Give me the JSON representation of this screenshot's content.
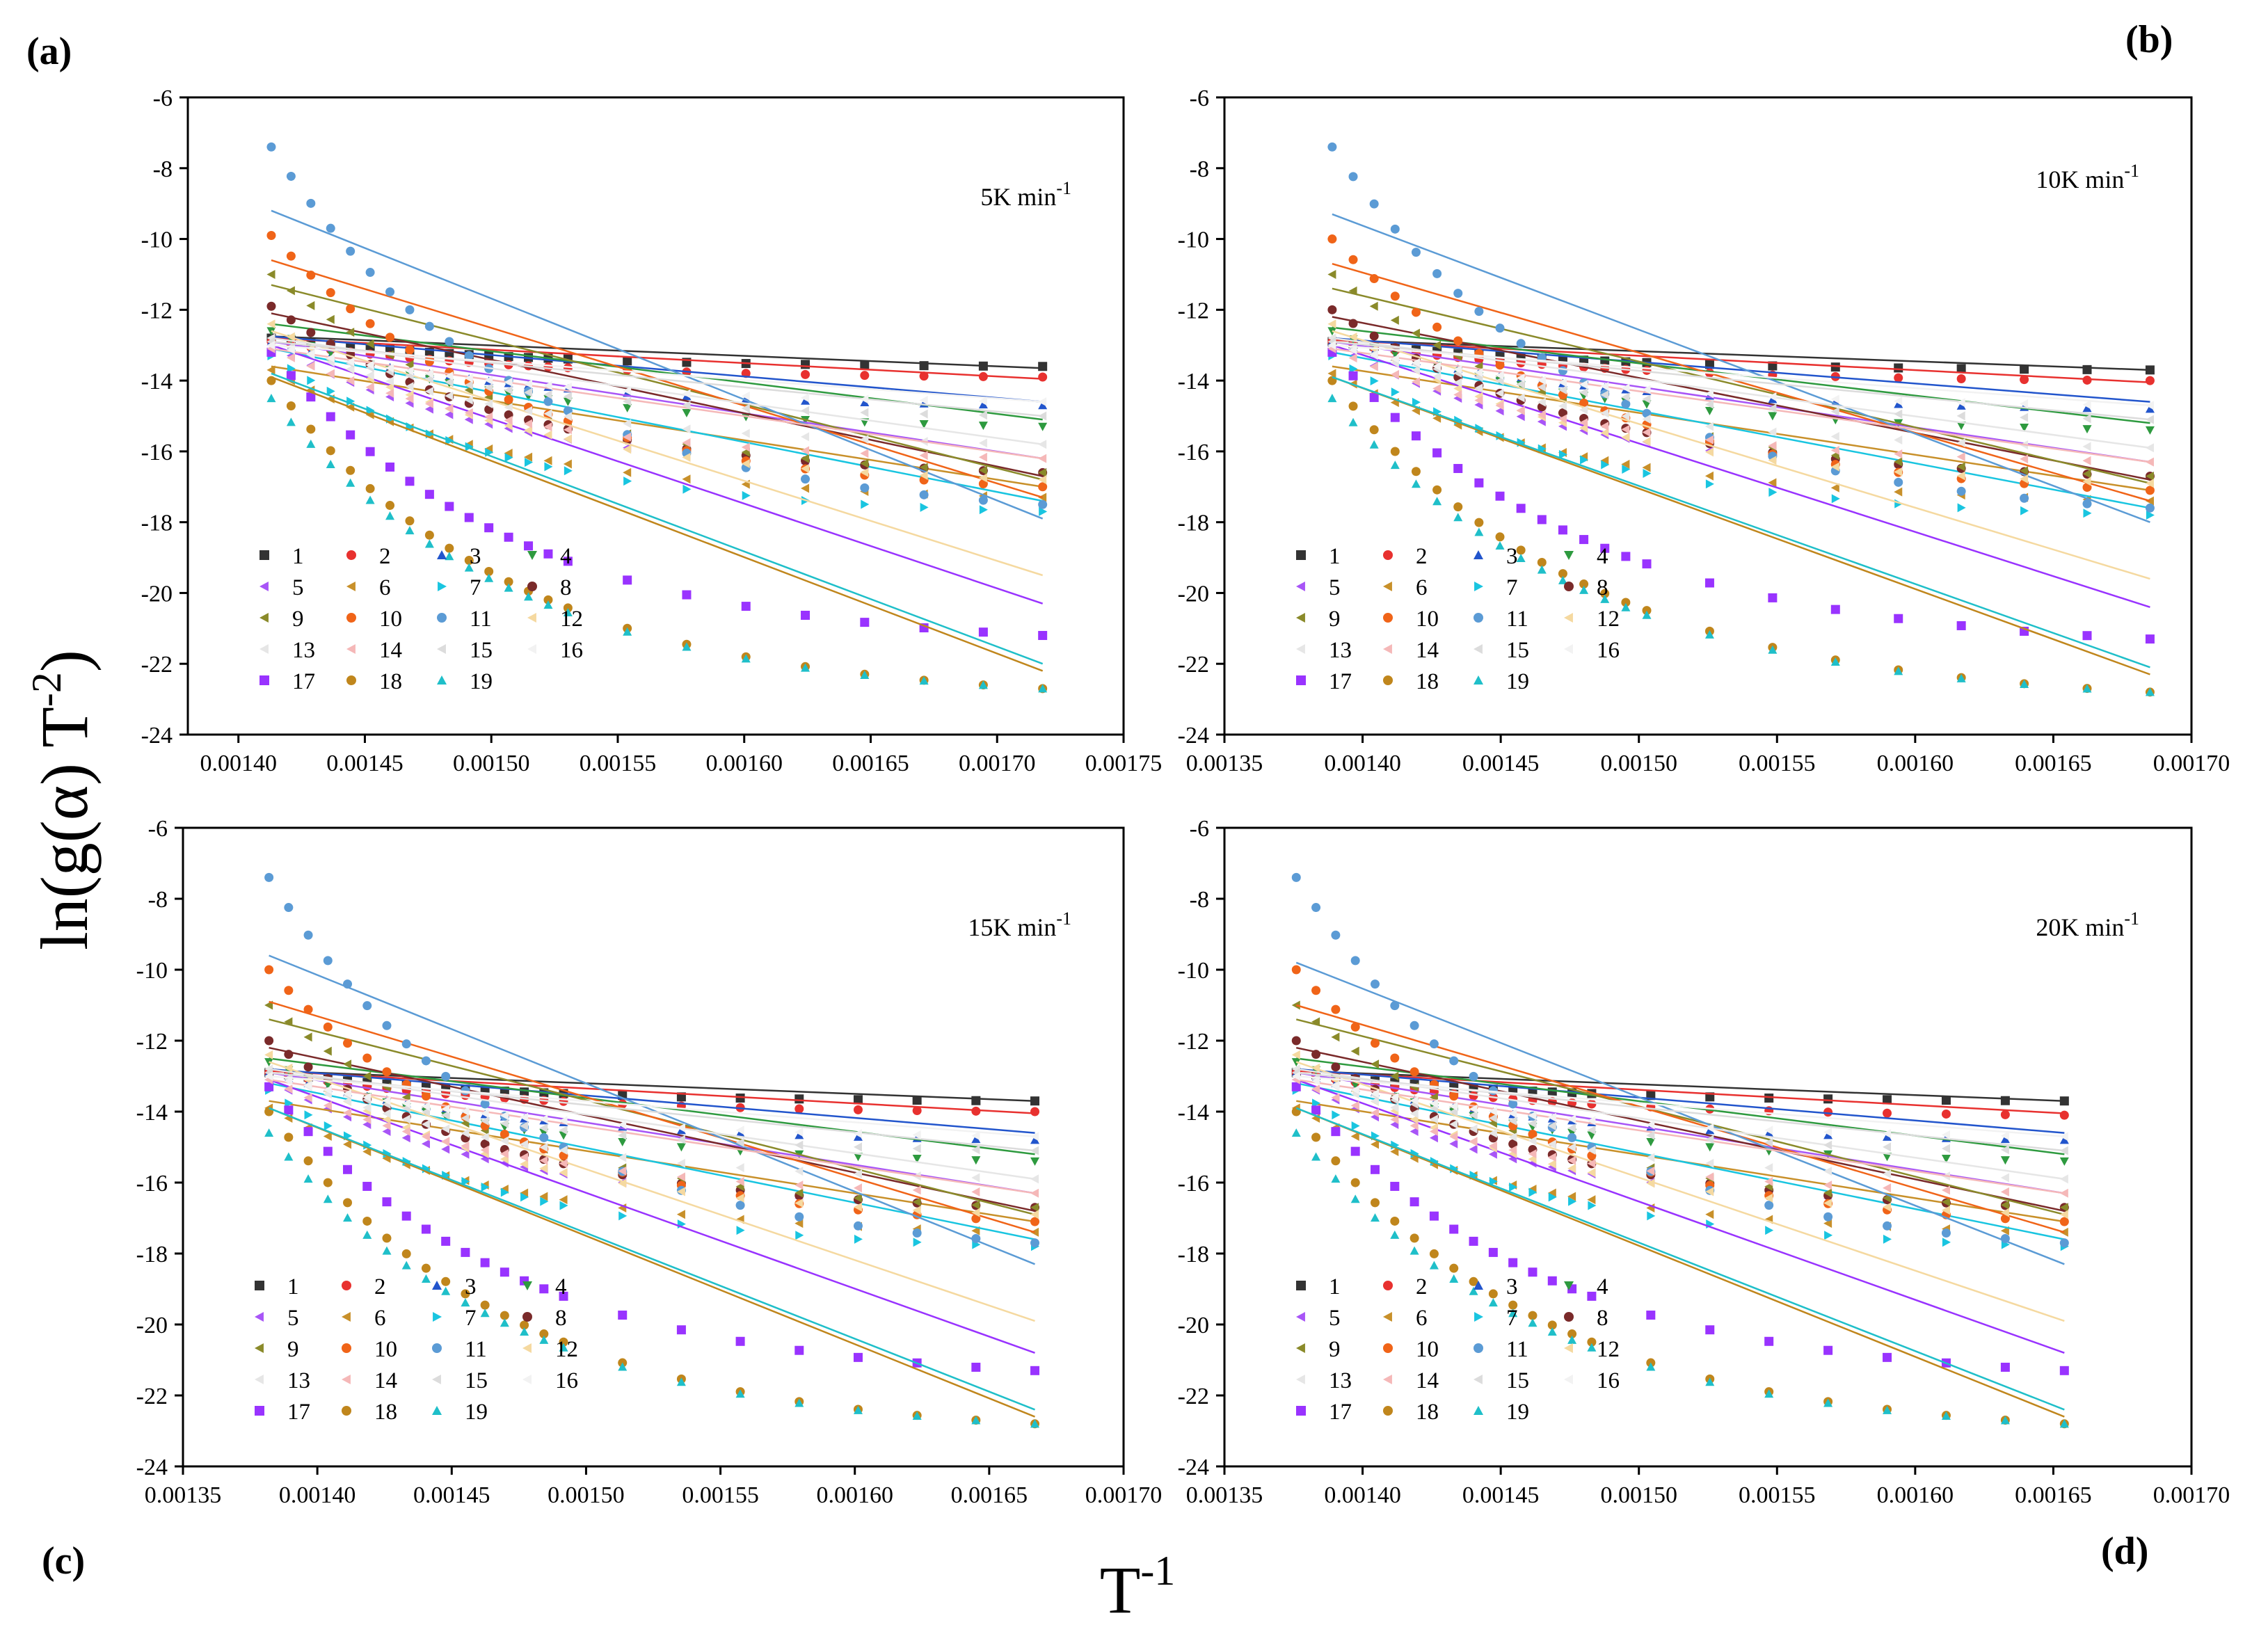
{
  "figure": {
    "ylabel": "ln(g(α) T",
    "ylabel_sup": "-2",
    "ylabel_close": ")",
    "xlabel": "T",
    "xlabel_sup": "-1"
  },
  "series_styles": {
    "names": [
      "1",
      "2",
      "3",
      "4",
      "5",
      "6",
      "7",
      "8",
      "9",
      "10",
      "11",
      "12",
      "13",
      "14",
      "15",
      "16",
      "17",
      "18",
      "19"
    ],
    "colors": [
      "#333333",
      "#e8312f",
      "#2255cc",
      "#2e9a3f",
      "#a855f7",
      "#c8902a",
      "#19c5e0",
      "#7a2a2a",
      "#8a8a2a",
      "#f06418",
      "#5b9bd5",
      "#f5d9a0",
      "#e6e6e6",
      "#f5b8b8",
      "#dcdcdc",
      "#f2f2f2",
      "#9933ff",
      "#c0861c",
      "#1fbfc9"
    ],
    "markers": [
      "square",
      "circle",
      "triangle-up",
      "triangle-down",
      "triangle-left",
      "triangle-left",
      "triangle-right",
      "circle",
      "triangle-left",
      "circle",
      "circle",
      "triangle-left",
      "triangle-left",
      "triangle-left",
      "triangle-left",
      "triangle-left",
      "square",
      "circle",
      "triangle-up"
    ]
  },
  "chart_data": [
    {
      "type": "scatter",
      "panel": "(a)",
      "rate": "5K min",
      "rate_sup": "-1",
      "xlim": [
        0.00138,
        0.00175
      ],
      "ylim": [
        -24,
        -6
      ],
      "xticks": [
        "0.00140",
        "0.00145",
        "0.00150",
        "0.00155",
        "0.00160",
        "0.00165",
        "0.00170",
        "0.00175"
      ],
      "yticks": [
        "-6",
        "-8",
        "-10",
        "-12",
        "-14",
        "-16",
        "-18",
        "-20",
        "-22",
        "-24"
      ],
      "x_range": [
        0.001413,
        0.001718
      ],
      "series": [
        {
          "name": "1",
          "start": -12.8,
          "end": -13.6,
          "fit": [
            -12.75,
            -13.65
          ]
        },
        {
          "name": "2",
          "start": -12.9,
          "end": -13.9,
          "fit": [
            -12.8,
            -13.95
          ]
        },
        {
          "name": "3",
          "start": -12.9,
          "end": -14.7,
          "fit": [
            -12.75,
            -14.6
          ]
        },
        {
          "name": "4",
          "start": -12.6,
          "end": -15.3,
          "fit": [
            -12.4,
            -15.1
          ]
        },
        {
          "name": "5",
          "start": -13.0,
          "end": -16.6,
          "fit": [
            -12.9,
            -16.2
          ]
        },
        {
          "name": "6",
          "start": -13.7,
          "end": -17.3,
          "fit": [
            -13.6,
            -17.0
          ]
        },
        {
          "name": "7",
          "start": -13.3,
          "end": -17.7,
          "fit": [
            -13.1,
            -17.4
          ]
        },
        {
          "name": "8",
          "start": -11.9,
          "end": -16.6,
          "fit": [
            -12.1,
            -16.7
          ]
        },
        {
          "name": "9",
          "start": -11.0,
          "end": -16.6,
          "fit": [
            -11.3,
            -16.8
          ]
        },
        {
          "name": "10",
          "start": -9.9,
          "end": -17.0,
          "fit": [
            -10.6,
            -17.3
          ]
        },
        {
          "name": "11",
          "start": -7.4,
          "end": -17.5,
          "fit": [
            -9.2,
            -17.9
          ]
        },
        {
          "name": "17",
          "start": -13.2,
          "end": -21.2,
          "fit": [
            -13.0,
            -20.3
          ]
        },
        {
          "name": "18",
          "start": -14.0,
          "end": -22.7,
          "fit": [
            -13.9,
            -22.2
          ]
        },
        {
          "name": "19",
          "start": -14.5,
          "end": -22.7,
          "fit": [
            -13.8,
            -22.0
          ]
        },
        {
          "name": "12",
          "start": -12.4,
          "end": -16.8,
          "fit": [
            -12.6,
            -19.5
          ]
        },
        {
          "name": "13",
          "start": -12.8,
          "end": -15.8,
          "fit": [
            -12.8,
            -15.8
          ]
        },
        {
          "name": "14",
          "start": -13.1,
          "end": -16.2,
          "fit": [
            -13.1,
            -16.2
          ]
        },
        {
          "name": "15",
          "start": -12.9,
          "end": -15.0,
          "fit": [
            -12.9,
            -15.0
          ]
        },
        {
          "name": "16",
          "start": -13.0,
          "end": -14.6,
          "fit": [
            -13.0,
            -14.6
          ]
        }
      ]
    },
    {
      "type": "scatter",
      "panel": "(b)",
      "rate": "10K min",
      "rate_sup": "-1",
      "xlim": [
        0.00135,
        0.0017
      ],
      "ylim": [
        -24,
        -6
      ],
      "xticks": [
        "0.00135",
        "0.00140",
        "0.00145",
        "0.00150",
        "0.00155",
        "0.00160",
        "0.00165",
        "0.00170"
      ],
      "yticks": [
        "-6",
        "-8",
        "-10",
        "-12",
        "-14",
        "-16",
        "-18",
        "-20",
        "-22",
        "-24"
      ],
      "x_range": [
        0.001389,
        0.001685
      ],
      "series": [
        {
          "name": "1",
          "start": -12.9,
          "end": -13.7,
          "fit": [
            -12.85,
            -13.7
          ]
        },
        {
          "name": "2",
          "start": -12.9,
          "end": -14.0,
          "fit": [
            -12.85,
            -14.05
          ]
        },
        {
          "name": "3",
          "start": -12.9,
          "end": -14.8,
          "fit": [
            -12.8,
            -14.6
          ]
        },
        {
          "name": "4",
          "start": -12.6,
          "end": -15.4,
          "fit": [
            -12.5,
            -15.2
          ]
        },
        {
          "name": "5",
          "start": -13.0,
          "end": -16.7,
          "fit": [
            -12.9,
            -16.3
          ]
        },
        {
          "name": "6",
          "start": -13.8,
          "end": -17.4,
          "fit": [
            -13.6,
            -17.1
          ]
        },
        {
          "name": "7",
          "start": -13.3,
          "end": -17.8,
          "fit": [
            -13.2,
            -17.6
          ]
        },
        {
          "name": "8",
          "start": -12.0,
          "end": -16.7,
          "fit": [
            -12.2,
            -16.8
          ]
        },
        {
          "name": "9",
          "start": -11.0,
          "end": -16.7,
          "fit": [
            -11.4,
            -16.9
          ]
        },
        {
          "name": "10",
          "start": -10.0,
          "end": -17.1,
          "fit": [
            -10.7,
            -17.4
          ]
        },
        {
          "name": "11",
          "start": -7.4,
          "end": -17.6,
          "fit": [
            -9.3,
            -18.0
          ]
        },
        {
          "name": "17",
          "start": -13.2,
          "end": -21.3,
          "fit": [
            -13.0,
            -20.4
          ]
        },
        {
          "name": "18",
          "start": -14.0,
          "end": -22.8,
          "fit": [
            -13.9,
            -22.3
          ]
        },
        {
          "name": "19",
          "start": -14.5,
          "end": -22.8,
          "fit": [
            -13.9,
            -22.1
          ]
        },
        {
          "name": "12",
          "start": -12.4,
          "end": -16.9,
          "fit": [
            -12.6,
            -19.6
          ]
        },
        {
          "name": "13",
          "start": -12.8,
          "end": -15.9,
          "fit": [
            -12.8,
            -15.9
          ]
        },
        {
          "name": "14",
          "start": -13.1,
          "end": -16.3,
          "fit": [
            -13.1,
            -16.3
          ]
        },
        {
          "name": "15",
          "start": -12.9,
          "end": -15.1,
          "fit": [
            -12.9,
            -15.1
          ]
        },
        {
          "name": "16",
          "start": -13.0,
          "end": -14.7,
          "fit": [
            -13.0,
            -14.7
          ]
        }
      ]
    },
    {
      "type": "scatter",
      "panel": "(c)",
      "rate": "15K min",
      "rate_sup": "-1",
      "xlim": [
        0.00135,
        0.0017
      ],
      "ylim": [
        -24,
        -6
      ],
      "xticks": [
        "0.00135",
        "0.00140",
        "0.00145",
        "0.00150",
        "0.00155",
        "0.00160",
        "0.00165",
        "0.00170"
      ],
      "yticks": [
        "-6",
        "-8",
        "-10",
        "-12",
        "-14",
        "-16",
        "-18",
        "-20",
        "-22",
        "-24"
      ],
      "x_range": [
        0.001382,
        0.001667
      ],
      "series": [
        {
          "name": "1",
          "start": -12.9,
          "end": -13.7,
          "fit": [
            -12.85,
            -13.7
          ]
        },
        {
          "name": "2",
          "start": -12.9,
          "end": -14.0,
          "fit": [
            -12.85,
            -14.05
          ]
        },
        {
          "name": "3",
          "start": -12.9,
          "end": -14.8,
          "fit": [
            -12.8,
            -14.6
          ]
        },
        {
          "name": "4",
          "start": -12.6,
          "end": -15.4,
          "fit": [
            -12.5,
            -15.2
          ]
        },
        {
          "name": "5",
          "start": -13.1,
          "end": -16.7,
          "fit": [
            -12.9,
            -16.3
          ]
        },
        {
          "name": "6",
          "start": -13.9,
          "end": -17.4,
          "fit": [
            -13.7,
            -17.1
          ]
        },
        {
          "name": "7",
          "start": -13.4,
          "end": -17.8,
          "fit": [
            -13.2,
            -17.6
          ]
        },
        {
          "name": "8",
          "start": -12.0,
          "end": -16.7,
          "fit": [
            -12.2,
            -16.8
          ]
        },
        {
          "name": "9",
          "start": -11.0,
          "end": -16.7,
          "fit": [
            -11.4,
            -16.9
          ]
        },
        {
          "name": "10",
          "start": -10.0,
          "end": -17.1,
          "fit": [
            -10.9,
            -17.4
          ]
        },
        {
          "name": "11",
          "start": -7.4,
          "end": -17.7,
          "fit": [
            -9.6,
            -18.3
          ]
        },
        {
          "name": "17",
          "start": -13.3,
          "end": -21.3,
          "fit": [
            -13.1,
            -20.8
          ]
        },
        {
          "name": "18",
          "start": -14.0,
          "end": -22.8,
          "fit": [
            -13.9,
            -22.6
          ]
        },
        {
          "name": "19",
          "start": -14.6,
          "end": -22.8,
          "fit": [
            -13.9,
            -22.4
          ]
        },
        {
          "name": "12",
          "start": -12.4,
          "end": -16.9,
          "fit": [
            -12.6,
            -19.9
          ]
        },
        {
          "name": "13",
          "start": -12.8,
          "end": -15.9,
          "fit": [
            -12.8,
            -15.9
          ]
        },
        {
          "name": "14",
          "start": -13.1,
          "end": -16.3,
          "fit": [
            -13.1,
            -16.3
          ]
        },
        {
          "name": "15",
          "start": -12.9,
          "end": -15.1,
          "fit": [
            -12.9,
            -15.1
          ]
        },
        {
          "name": "16",
          "start": -13.0,
          "end": -14.7,
          "fit": [
            -13.0,
            -14.7
          ]
        }
      ]
    },
    {
      "type": "scatter",
      "panel": "(d)",
      "rate": "20K min",
      "rate_sup": "-1",
      "xlim": [
        0.00135,
        0.0017
      ],
      "ylim": [
        -24,
        -6
      ],
      "xticks": [
        "0.00135",
        "0.00140",
        "0.00145",
        "0.00150",
        "0.00155",
        "0.00160",
        "0.00165",
        "0.00170"
      ],
      "yticks": [
        "-6",
        "-8",
        "-10",
        "-12",
        "-14",
        "-16",
        "-18",
        "-20",
        "-22",
        "-24"
      ],
      "x_range": [
        0.001376,
        0.001654
      ],
      "series": [
        {
          "name": "1",
          "start": -12.9,
          "end": -13.7,
          "fit": [
            -12.85,
            -13.7
          ]
        },
        {
          "name": "2",
          "start": -12.9,
          "end": -14.1,
          "fit": [
            -12.85,
            -14.05
          ]
        },
        {
          "name": "3",
          "start": -12.9,
          "end": -14.8,
          "fit": [
            -12.8,
            -14.6
          ]
        },
        {
          "name": "4",
          "start": -12.6,
          "end": -15.4,
          "fit": [
            -12.5,
            -15.2
          ]
        },
        {
          "name": "5",
          "start": -13.1,
          "end": -16.7,
          "fit": [
            -12.9,
            -16.3
          ]
        },
        {
          "name": "6",
          "start": -13.9,
          "end": -17.4,
          "fit": [
            -13.7,
            -17.1
          ]
        },
        {
          "name": "7",
          "start": -13.4,
          "end": -17.8,
          "fit": [
            -13.2,
            -17.6
          ]
        },
        {
          "name": "8",
          "start": -12.0,
          "end": -16.7,
          "fit": [
            -12.2,
            -16.8
          ]
        },
        {
          "name": "9",
          "start": -11.0,
          "end": -16.7,
          "fit": [
            -11.4,
            -16.9
          ]
        },
        {
          "name": "10",
          "start": -10.0,
          "end": -17.1,
          "fit": [
            -11.0,
            -17.4
          ]
        },
        {
          "name": "11",
          "start": -7.4,
          "end": -17.7,
          "fit": [
            -9.8,
            -18.3
          ]
        },
        {
          "name": "17",
          "start": -13.3,
          "end": -21.3,
          "fit": [
            -13.1,
            -20.8
          ]
        },
        {
          "name": "18",
          "start": -14.0,
          "end": -22.8,
          "fit": [
            -13.9,
            -22.6
          ]
        },
        {
          "name": "19",
          "start": -14.6,
          "end": -22.8,
          "fit": [
            -13.9,
            -22.4
          ]
        },
        {
          "name": "12",
          "start": -12.4,
          "end": -16.9,
          "fit": [
            -12.6,
            -19.9
          ]
        },
        {
          "name": "13",
          "start": -12.8,
          "end": -15.9,
          "fit": [
            -12.8,
            -15.9
          ]
        },
        {
          "name": "14",
          "start": -13.1,
          "end": -16.3,
          "fit": [
            -13.1,
            -16.3
          ]
        },
        {
          "name": "15",
          "start": -12.9,
          "end": -15.1,
          "fit": [
            -12.9,
            -15.1
          ]
        },
        {
          "name": "16",
          "start": -13.0,
          "end": -14.7,
          "fit": [
            -13.0,
            -14.7
          ]
        }
      ]
    }
  ]
}
